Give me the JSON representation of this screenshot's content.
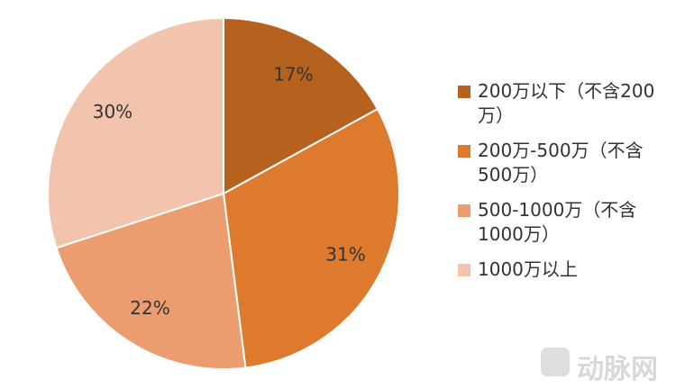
{
  "chart_data": {
    "type": "pie",
    "categories": [
      "200万以下（不含200万）",
      "200万-500万（不含500万）",
      "500-1000万（不含1000万）",
      "1000万以上"
    ],
    "values": [
      17,
      31,
      22,
      30
    ],
    "value_labels": [
      "17%",
      "31%",
      "22%",
      "30%"
    ],
    "colors": [
      "#b5621f",
      "#de7a2d",
      "#eb9d6f",
      "#f2c4ae"
    ],
    "legend": "right"
  },
  "watermark": "动脉网"
}
